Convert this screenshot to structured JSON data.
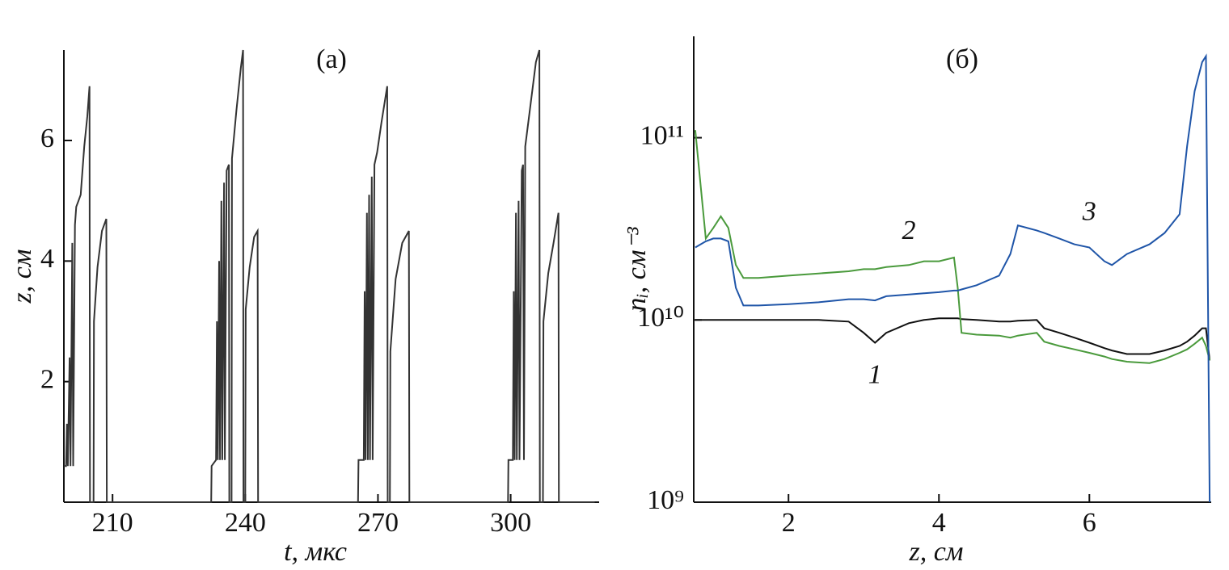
{
  "chart_data": [
    {
      "type": "line",
      "title": "(а)",
      "x_label": "t, мкс",
      "y_label": "z, см",
      "xlim": [
        199,
        320
      ],
      "ylim": [
        0,
        7.5
      ],
      "xticks": [
        210,
        240,
        270,
        300
      ],
      "yticks": [
        2,
        4,
        6
      ],
      "log_y": false,
      "x": [
        199.0,
        199.5,
        199.7,
        199.9,
        200.3,
        200.5,
        200.9,
        201.1,
        201.5,
        201.8,
        202.3,
        202.8,
        203.6,
        204.3,
        204.8,
        204.9,
        205.7,
        205.8,
        206.6,
        207.6,
        208.6,
        208.7,
        232.3,
        232.4,
        233.4,
        233.6,
        233.8,
        234.1,
        234.3,
        234.6,
        234.8,
        235.2,
        235.4,
        235.8,
        236.3,
        236.4,
        236.9,
        237.0,
        238.0,
        239.0,
        239.5,
        239.6,
        240.0,
        240.1,
        241.0,
        242.0,
        242.8,
        242.9,
        265.5,
        265.6,
        266.8,
        267.0,
        267.2,
        267.5,
        267.7,
        268.0,
        268.2,
        268.6,
        268.8,
        269.2,
        269.8,
        270.8,
        272.1,
        272.2,
        272.7,
        272.8,
        274.0,
        275.5,
        277.0,
        277.1,
        299.4,
        299.5,
        300.5,
        300.7,
        300.9,
        301.2,
        301.4,
        301.8,
        302.0,
        302.5,
        302.8,
        303.0,
        303.3,
        304.5,
        305.7,
        306.5,
        306.6,
        307.3,
        307.4,
        308.5,
        309.7,
        310.8,
        310.9,
        319
      ],
      "series": [
        {
          "color": "#333333",
          "values": [
            0.6,
            0.6,
            1.3,
            0.6,
            2.4,
            0.6,
            4.3,
            0.6,
            4.6,
            4.9,
            5.0,
            5.1,
            5.9,
            6.4,
            6.9,
            0,
            0,
            3.0,
            3.9,
            4.5,
            4.7,
            0,
            0,
            0.6,
            0.7,
            3.0,
            0.7,
            4.0,
            0.7,
            5.0,
            0.7,
            5.3,
            0.7,
            5.5,
            5.6,
            0,
            0,
            5.7,
            6.5,
            7.2,
            7.5,
            0,
            0,
            3.2,
            3.9,
            4.4,
            4.5,
            0,
            0,
            0.7,
            0.7,
            3.5,
            0.7,
            4.8,
            0.7,
            5.1,
            0.7,
            5.4,
            0.7,
            5.6,
            5.8,
            6.3,
            6.9,
            0,
            0,
            2.5,
            3.7,
            4.3,
            4.5,
            0,
            0,
            0.7,
            0.7,
            3.5,
            0.7,
            4.8,
            0.7,
            5.0,
            0.7,
            5.5,
            5.6,
            0.7,
            5.9,
            6.6,
            7.3,
            7.5,
            0,
            0,
            3.0,
            3.8,
            4.3,
            4.8,
            0,
            0
          ]
        }
      ]
    },
    {
      "type": "line",
      "title": "(б)",
      "x_label": "z, см",
      "y_label": "nᵢ, см⁻³",
      "xlim": [
        0.74,
        7.62
      ],
      "ylim": [
        1000000000.0,
        360000000000.0
      ],
      "xticks": [
        2,
        4,
        6
      ],
      "yticks": [
        {
          "value": 1000000000.0,
          "label": "10⁹"
        },
        {
          "value": 10000000000.0,
          "label": "10¹⁰"
        },
        {
          "value": 100000000000.0,
          "label": "10¹¹"
        }
      ],
      "log_y": true,
      "x": [
        0.76,
        0.9,
        1.0,
        1.1,
        1.2,
        1.3,
        1.4,
        1.6,
        2.0,
        2.4,
        2.8,
        3.0,
        3.15,
        3.3,
        3.6,
        3.8,
        4.0,
        4.2,
        4.25,
        4.3,
        4.5,
        4.8,
        4.95,
        5.05,
        5.3,
        5.4,
        5.6,
        5.8,
        6.0,
        6.2,
        6.3,
        6.5,
        6.8,
        7.0,
        7.2,
        7.3,
        7.4,
        7.5,
        7.55,
        7.6
      ],
      "series": [
        {
          "name": "1",
          "color": "#111111",
          "values": [
            10000000000.0,
            10000000000.0,
            10000000000.0,
            10000000000.0,
            10000000000.0,
            10000000000.0,
            10000000000.0,
            10000000000.0,
            10000000000.0,
            10000000000.0,
            9800000000.0,
            8500000000.0,
            7500000000.0,
            8500000000.0,
            9600000000.0,
            10000000000.0,
            10200000000.0,
            10200000000.0,
            10200000000.0,
            10100000000.0,
            10000000000.0,
            9800000000.0,
            9800000000.0,
            9900000000.0,
            10000000000.0,
            9000000000.0,
            8500000000.0,
            8000000000.0,
            7500000000.0,
            7000000000.0,
            6800000000.0,
            6500000000.0,
            6500000000.0,
            6800000000.0,
            7200000000.0,
            7600000000.0,
            8200000000.0,
            9000000000.0,
            9000000000.0,
            6000000000.0
          ]
        },
        {
          "name": "2",
          "color": "#4a9a3c",
          "values": [
            110000000000.0,
            28000000000.0,
            32000000000.0,
            37000000000.0,
            32000000000.0,
            20000000000.0,
            17000000000.0,
            17000000000.0,
            17500000000.0,
            18000000000.0,
            18500000000.0,
            19000000000.0,
            19000000000.0,
            19500000000.0,
            20000000000.0,
            21000000000.0,
            21000000000.0,
            22000000000.0,
            15000000000.0,
            8500000000.0,
            8300000000.0,
            8200000000.0,
            8000000000.0,
            8200000000.0,
            8500000000.0,
            7600000000.0,
            7200000000.0,
            6900000000.0,
            6600000000.0,
            6300000000.0,
            6100000000.0,
            5900000000.0,
            5800000000.0,
            6100000000.0,
            6600000000.0,
            6900000000.0,
            7400000000.0,
            8000000000.0,
            7200000000.0,
            6000000000.0
          ]
        },
        {
          "name": "3",
          "color": "#1f55a8",
          "values": [
            25000000000.0,
            27000000000.0,
            28000000000.0,
            28000000000.0,
            27000000000.0,
            15000000000.0,
            12000000000.0,
            12000000000.0,
            12200000000.0,
            12500000000.0,
            13000000000.0,
            13000000000.0,
            12800000000.0,
            13500000000.0,
            13800000000.0,
            14000000000.0,
            14200000000.0,
            14500000000.0,
            14500000000.0,
            14700000000.0,
            15500000000.0,
            17500000000.0,
            23000000000.0,
            33000000000.0,
            31000000000.0,
            30000000000.0,
            28000000000.0,
            26000000000.0,
            25000000000.0,
            21000000000.0,
            20000000000.0,
            23000000000.0,
            26000000000.0,
            30000000000.0,
            38000000000.0,
            90000000000.0,
            180000000000.0,
            260000000000.0,
            280000000000.0,
            1000000000.0
          ]
        }
      ]
    }
  ]
}
